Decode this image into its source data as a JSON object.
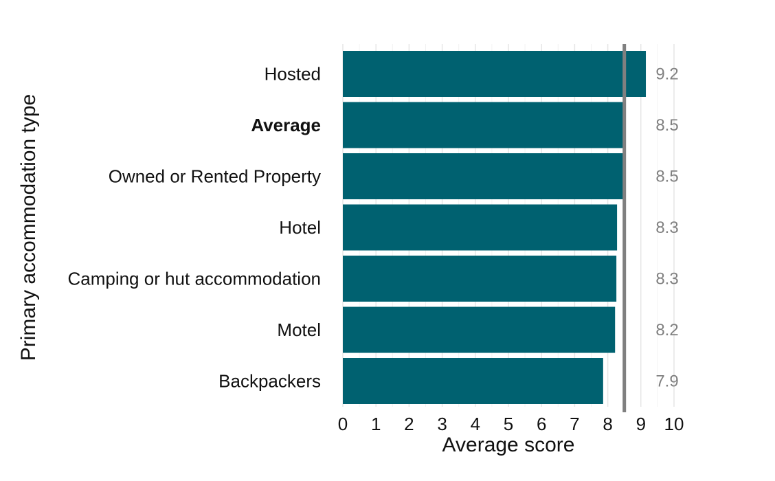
{
  "chart_data": {
    "type": "bar",
    "orientation": "horizontal",
    "categories": [
      "Hosted",
      "Average",
      "Owned or Rented Property",
      "Hotel",
      "Camping or hut accommodation",
      "Motel",
      "Backpackers"
    ],
    "values": [
      9.15,
      8.5,
      8.46,
      8.28,
      8.26,
      8.22,
      7.86
    ],
    "value_labels": [
      "9.2",
      "8.5",
      "8.5",
      "8.3",
      "8.3",
      "8.2",
      "7.9"
    ],
    "emphasized_category": "Average",
    "reference_line": 8.5,
    "xlabel": "Average score",
    "ylabel": "Primary accommodation type",
    "xlim": [
      0,
      10
    ],
    "xticks": [
      "0",
      "1",
      "2",
      "3",
      "4",
      "5",
      "6",
      "7",
      "8",
      "9",
      "10"
    ],
    "grid": true,
    "legend": "none",
    "colors": {
      "bar": "#006170",
      "reference_line": "#808080",
      "value_label": "#808080",
      "grid": "#e6e6e6"
    }
  }
}
